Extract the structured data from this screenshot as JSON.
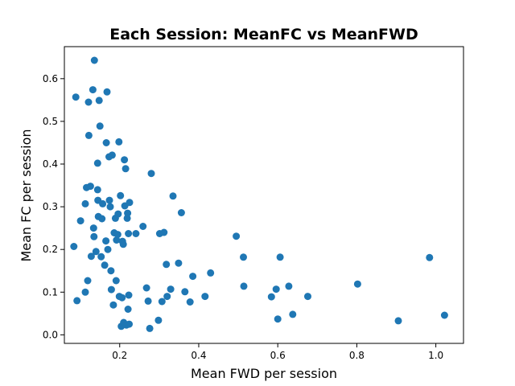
{
  "chart_data": {
    "type": "scatter",
    "title": "Each Session: MeanFC vs MeanFWD",
    "xlabel": "Mean FWD per session",
    "ylabel": "Mean FC per session",
    "xlim": [
      0.06,
      1.07
    ],
    "ylim": [
      -0.02,
      0.675
    ],
    "xticks": [
      0.2,
      0.4,
      0.6,
      0.8,
      1.0
    ],
    "xtick_labels": [
      "0.2",
      "0.4",
      "0.6",
      "0.8",
      "1.0"
    ],
    "yticks": [
      0.0,
      0.1,
      0.2,
      0.3,
      0.4,
      0.5,
      0.6
    ],
    "ytick_labels": [
      "0.0",
      "0.1",
      "0.2",
      "0.3",
      "0.4",
      "0.5",
      "0.6"
    ],
    "grid": false,
    "color": "#1f77b4",
    "points": [
      [
        0.089,
        0.557
      ],
      [
        0.084,
        0.207
      ],
      [
        0.092,
        0.08
      ],
      [
        0.101,
        0.267
      ],
      [
        0.113,
        0.307
      ],
      [
        0.116,
        0.345
      ],
      [
        0.113,
        0.1
      ],
      [
        0.119,
        0.127
      ],
      [
        0.121,
        0.545
      ],
      [
        0.122,
        0.467
      ],
      [
        0.126,
        0.348
      ],
      [
        0.128,
        0.184
      ],
      [
        0.132,
        0.574
      ],
      [
        0.136,
        0.643
      ],
      [
        0.134,
        0.25
      ],
      [
        0.135,
        0.23
      ],
      [
        0.14,
        0.195
      ],
      [
        0.144,
        0.402
      ],
      [
        0.144,
        0.34
      ],
      [
        0.145,
        0.315
      ],
      [
        0.146,
        0.277
      ],
      [
        0.148,
        0.549
      ],
      [
        0.15,
        0.489
      ],
      [
        0.153,
        0.183
      ],
      [
        0.155,
        0.272
      ],
      [
        0.157,
        0.307
      ],
      [
        0.162,
        0.163
      ],
      [
        0.165,
        0.22
      ],
      [
        0.166,
        0.45
      ],
      [
        0.168,
        0.569
      ],
      [
        0.17,
        0.2
      ],
      [
        0.173,
        0.417
      ],
      [
        0.174,
        0.315
      ],
      [
        0.176,
        0.3
      ],
      [
        0.178,
        0.15
      ],
      [
        0.179,
        0.106
      ],
      [
        0.181,
        0.421
      ],
      [
        0.184,
        0.07
      ],
      [
        0.186,
        0.239
      ],
      [
        0.189,
        0.273
      ],
      [
        0.191,
        0.127
      ],
      [
        0.192,
        0.222
      ],
      [
        0.195,
        0.235
      ],
      [
        0.196,
        0.283
      ],
      [
        0.198,
        0.452
      ],
      [
        0.199,
        0.09
      ],
      [
        0.202,
        0.326
      ],
      [
        0.204,
        0.02
      ],
      [
        0.206,
        0.087
      ],
      [
        0.207,
        0.219
      ],
      [
        0.209,
        0.212
      ],
      [
        0.21,
        0.029
      ],
      [
        0.212,
        0.41
      ],
      [
        0.213,
        0.302
      ],
      [
        0.215,
        0.389
      ],
      [
        0.217,
        0.023
      ],
      [
        0.219,
        0.273
      ],
      [
        0.22,
        0.285
      ],
      [
        0.221,
        0.06
      ],
      [
        0.222,
        0.237
      ],
      [
        0.223,
        0.093
      ],
      [
        0.225,
        0.31
      ],
      [
        0.224,
        0.025
      ],
      [
        0.241,
        0.237
      ],
      [
        0.259,
        0.254
      ],
      [
        0.268,
        0.11
      ],
      [
        0.272,
        0.079
      ],
      [
        0.276,
        0.015
      ],
      [
        0.28,
        0.378
      ],
      [
        0.298,
        0.034
      ],
      [
        0.301,
        0.237
      ],
      [
        0.307,
        0.078
      ],
      [
        0.312,
        0.24
      ],
      [
        0.318,
        0.165
      ],
      [
        0.32,
        0.09
      ],
      [
        0.329,
        0.107
      ],
      [
        0.335,
        0.325
      ],
      [
        0.349,
        0.168
      ],
      [
        0.356,
        0.286
      ],
      [
        0.365,
        0.101
      ],
      [
        0.378,
        0.077
      ],
      [
        0.385,
        0.137
      ],
      [
        0.416,
        0.09
      ],
      [
        0.43,
        0.145
      ],
      [
        0.495,
        0.231
      ],
      [
        0.513,
        0.182
      ],
      [
        0.514,
        0.114
      ],
      [
        0.584,
        0.089
      ],
      [
        0.596,
        0.107
      ],
      [
        0.6,
        0.037
      ],
      [
        0.606,
        0.182
      ],
      [
        0.628,
        0.114
      ],
      [
        0.638,
        0.048
      ],
      [
        0.676,
        0.09
      ],
      [
        0.802,
        0.119
      ],
      [
        0.905,
        0.033
      ],
      [
        0.984,
        0.181
      ],
      [
        1.022,
        0.046
      ]
    ]
  }
}
